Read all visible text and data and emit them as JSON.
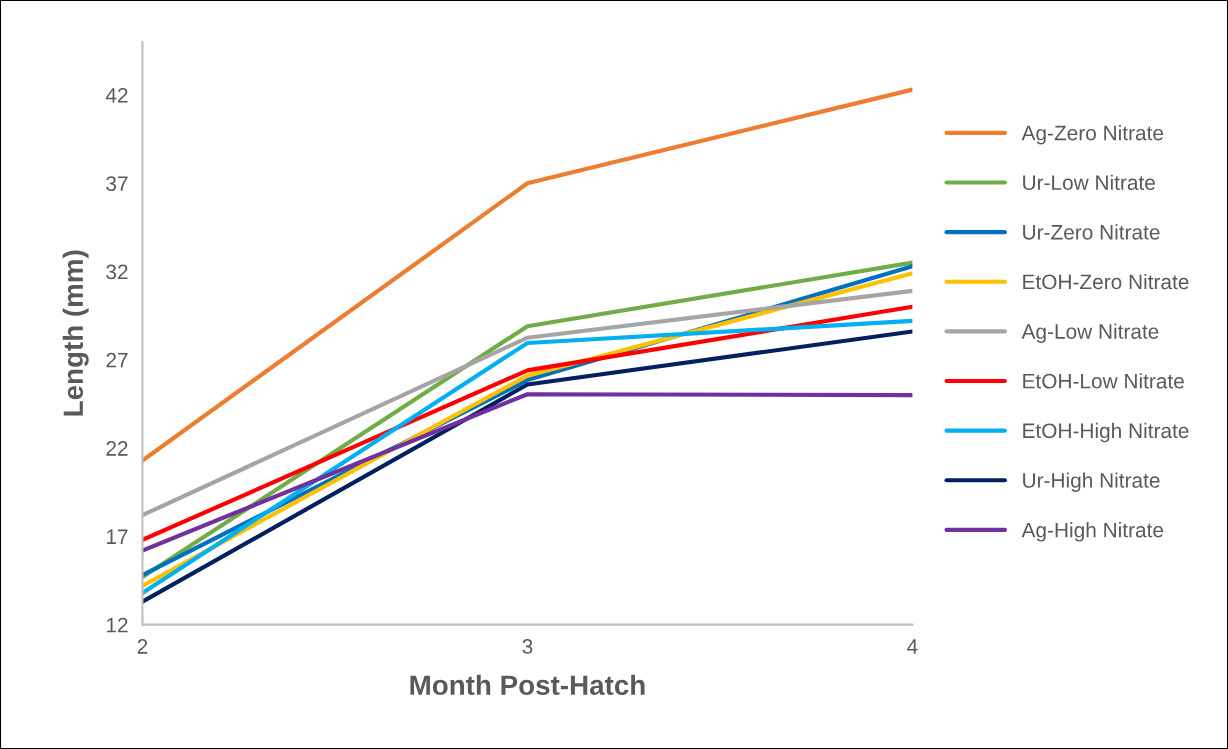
{
  "chart_data": {
    "type": "line",
    "xlabel": "Month Post-Hatch",
    "ylabel": "Length (mm)",
    "x": [
      2,
      3,
      4
    ],
    "xlim": [
      2,
      4
    ],
    "xticks": [
      2,
      3,
      4
    ],
    "ylim": [
      12,
      45
    ],
    "yticks": [
      12,
      17,
      22,
      27,
      32,
      37,
      42
    ],
    "grid": false,
    "legend": "right",
    "marker": "none",
    "line_style": "solid",
    "series": [
      {
        "name": "Ag-Zero Nitrate",
        "color": "#ed7d31",
        "values": [
          21.3,
          37.0,
          42.3
        ]
      },
      {
        "name": "Ur-Low Nitrate",
        "color": "#70ad47",
        "values": [
          14.7,
          28.9,
          32.5
        ]
      },
      {
        "name": "Ur-Zero Nitrate",
        "color": "#0070c0",
        "values": [
          14.8,
          25.85,
          32.3
        ]
      },
      {
        "name": "EtOH-Zero Nitrate",
        "color": "#ffc000",
        "values": [
          14.2,
          26.1,
          31.9
        ]
      },
      {
        "name": "Ag-Low Nitrate",
        "color": "#a5a5a5",
        "values": [
          18.2,
          28.25,
          30.9
        ]
      },
      {
        "name": "EtOH-Low Nitrate",
        "color": "#ff0000",
        "values": [
          16.8,
          26.4,
          30.0
        ]
      },
      {
        "name": "EtOH-High Nitrate",
        "color": "#00b0f0",
        "values": [
          13.8,
          27.95,
          29.2
        ]
      },
      {
        "name": "Ur-High Nitrate",
        "color": "#002060",
        "values": [
          13.3,
          25.6,
          28.6
        ]
      },
      {
        "name": "Ag-High Nitrate",
        "color": "#7030a0",
        "values": [
          16.2,
          25.05,
          25.0
        ]
      }
    ]
  }
}
